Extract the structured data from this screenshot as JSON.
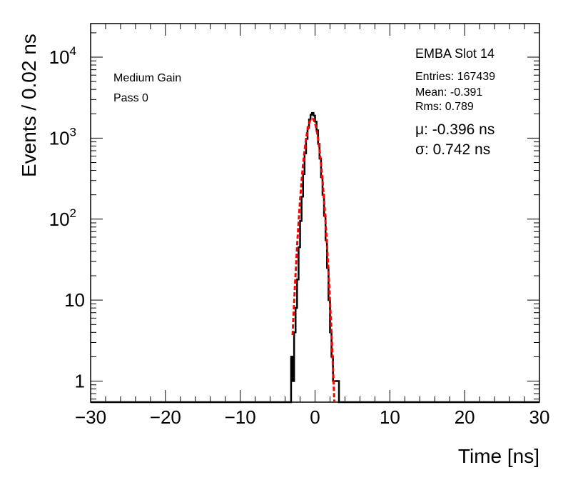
{
  "chart_data": {
    "type": "line",
    "title": "",
    "xlabel": "Time [ns]",
    "ylabel": "Events / 0.02 ns",
    "xlim": [
      -30,
      30
    ],
    "ylim": [
      0.55,
      26000
    ],
    "yscale": "log",
    "grid": false,
    "x_ticks": [
      -30,
      -20,
      -10,
      0,
      10,
      20,
      30
    ],
    "x_tick_labels": [
      "−30",
      "−20",
      "−10",
      "0",
      "10",
      "20",
      "30"
    ],
    "y_ticks": [
      1,
      10,
      100,
      1000,
      10000
    ],
    "y_tick_labels": [
      {
        "base": "1",
        "exp": ""
      },
      {
        "base": "10",
        "exp": ""
      },
      {
        "base": "10",
        "exp": "2"
      },
      {
        "base": "10",
        "exp": "3"
      },
      {
        "base": "10",
        "exp": "4"
      }
    ],
    "annotations": {
      "gain": "Medium Gain",
      "pass": "Pass 0",
      "module": "EMBA Slot 14",
      "entries": "Entries: 167439",
      "mean": "Mean: -0.391",
      "rms": "Rms: 0.789",
      "mu": "μ: -0.396 ns",
      "sigma": "σ: 0.742 ns"
    },
    "series": [
      {
        "kind": "histogram",
        "color": "#000000",
        "x": [
          -3.3,
          -3.1,
          -2.9,
          -2.7,
          -2.5,
          -2.3,
          -2.1,
          -1.9,
          -1.7,
          -1.5,
          -1.3,
          -1.1,
          -0.9,
          -0.7,
          -0.5,
          -0.3,
          -0.1,
          0.1,
          0.3,
          0.5,
          0.7,
          0.9,
          1.1,
          1.3,
          1.5,
          1.7,
          1.9,
          2.1,
          2.3,
          2.5,
          2.7,
          2.9,
          3.1
        ],
        "y": [
          0.5,
          2,
          1,
          4,
          8,
          18,
          45,
          95,
          190,
          360,
          650,
          980,
          1350,
          1700,
          1950,
          2050,
          1900,
          1600,
          1250,
          850,
          560,
          330,
          200,
          110,
          55,
          25,
          10,
          4,
          2,
          1,
          1,
          1,
          1
        ]
      },
      {
        "kind": "fit",
        "color": "#ff0000",
        "mu": -0.396,
        "sigma": 0.742,
        "peak": 1750,
        "x_range": [
          -3.0,
          2.6
        ]
      }
    ]
  }
}
